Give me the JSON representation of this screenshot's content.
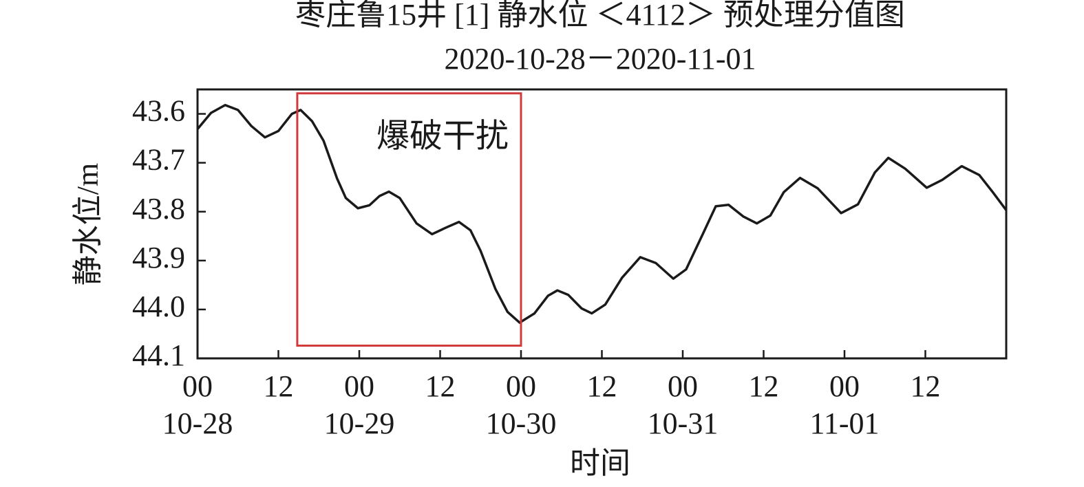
{
  "chart_data": {
    "type": "line",
    "title": "枣庄鲁15井 [1] 静水位 ＜4112＞ 预处理分值图",
    "subtitle": "2020-10-28－2020-11-01",
    "x_label": "时间",
    "y_label": "静水位/m",
    "xlim": [
      0,
      120
    ],
    "xticks": [
      {
        "value": 0,
        "label": "00"
      },
      {
        "value": 12,
        "label": "12"
      },
      {
        "value": 24,
        "label": "00"
      },
      {
        "value": 36,
        "label": "12"
      },
      {
        "value": 48,
        "label": "00"
      },
      {
        "value": 60,
        "label": "12"
      },
      {
        "value": 72,
        "label": "00"
      },
      {
        "value": 84,
        "label": "12"
      },
      {
        "value": 96,
        "label": "00"
      },
      {
        "value": 108,
        "label": "12"
      }
    ],
    "x_date_labels": [
      {
        "value": 0,
        "label": "10-28"
      },
      {
        "value": 24,
        "label": "10-29"
      },
      {
        "value": 48,
        "label": "10-30"
      },
      {
        "value": 72,
        "label": "10-31"
      },
      {
        "value": 96,
        "label": "11-01"
      }
    ],
    "ylim": [
      44.1,
      43.55
    ],
    "yticks": [
      43.6,
      43.7,
      43.8,
      43.9,
      {
        "value": 44.0,
        "label": "44.0"
      },
      44.1
    ],
    "annotation": {
      "text": "爆破干扰",
      "x": [
        14.8,
        48
      ],
      "y": [
        43.558,
        44.074
      ],
      "color": "#d03a3a"
    },
    "series": [
      {
        "name": "静水位",
        "color": "#1a1a1a",
        "x": [
          0,
          2,
          4.1,
          6,
          8,
          10,
          12,
          14,
          15.3,
          17,
          18.7,
          20.7,
          22,
          23.8,
          25.5,
          27,
          28.4,
          30,
          32.5,
          34.8,
          36.8,
          38.8,
          40.5,
          42,
          44.2,
          46,
          47.8,
          50,
          52,
          53.4,
          55,
          57,
          58.5,
          60.5,
          63,
          65.7,
          68,
          70.6,
          72.5,
          75,
          76.9,
          78.8,
          81,
          83,
          85,
          87,
          89.4,
          92,
          95.5,
          98,
          100.5,
          102.5,
          105,
          108.2,
          110.5,
          113.4,
          116,
          118,
          120
        ],
        "values": [
          43.631,
          43.598,
          43.582,
          43.592,
          43.625,
          43.648,
          43.635,
          43.6,
          43.592,
          43.615,
          43.655,
          43.732,
          43.772,
          43.793,
          43.787,
          43.768,
          43.759,
          43.772,
          43.824,
          43.846,
          43.833,
          43.821,
          43.838,
          43.88,
          43.958,
          44.005,
          44.027,
          44.008,
          43.972,
          43.961,
          43.97,
          43.998,
          44.008,
          43.99,
          43.935,
          43.893,
          43.905,
          43.937,
          43.918,
          43.845,
          43.789,
          43.786,
          43.81,
          43.824,
          43.808,
          43.76,
          43.731,
          43.752,
          43.803,
          43.785,
          43.72,
          43.69,
          43.712,
          43.751,
          43.735,
          43.707,
          43.725,
          43.76,
          43.797
        ]
      }
    ]
  }
}
